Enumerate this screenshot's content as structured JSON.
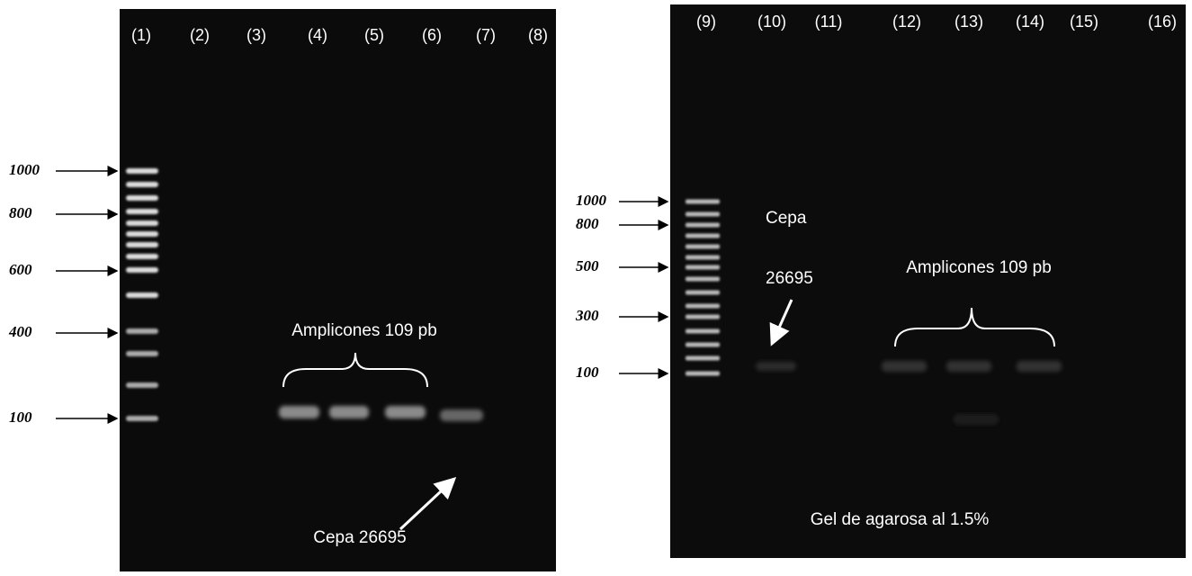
{
  "left_gel": {
    "lanes": [
      "(1)",
      "(2)",
      "(3)",
      "(4)",
      "(5)",
      "(6)",
      "(7)",
      "(8)"
    ],
    "markers": [
      "1000",
      "800",
      "600",
      "400",
      "100"
    ],
    "amplicons_label": "Amplicones 109 pb",
    "strain_label": "Cepa 26695"
  },
  "right_gel": {
    "lanes": [
      "(9)",
      "(10)",
      "(11)",
      "(12)",
      "(13)",
      "(14)",
      "(15)",
      "(16)"
    ],
    "markers": [
      "1000",
      "800",
      "500",
      "300",
      "100"
    ],
    "strain_label_line1": "Cepa",
    "strain_label_line2": "26695",
    "amplicons_label": "Amplicones 109 pb",
    "gel_note": "Gel de agarosa al 1.5%"
  }
}
